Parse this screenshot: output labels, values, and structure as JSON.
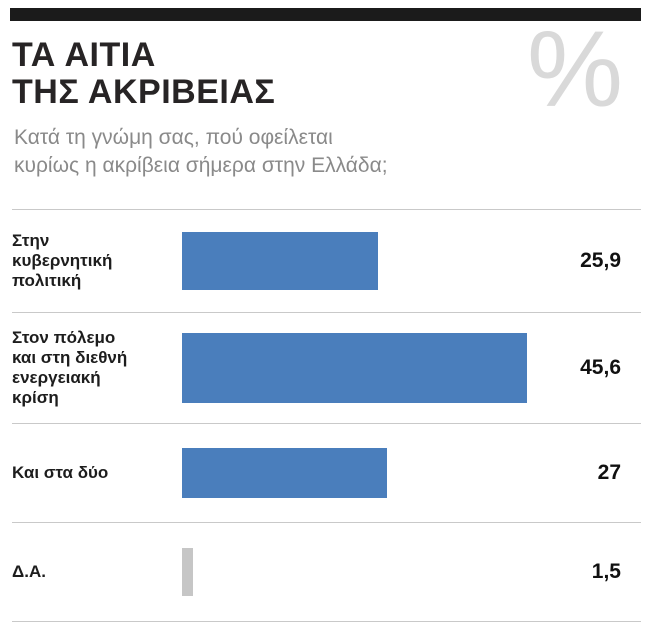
{
  "header": {
    "title": "ΤΑ ΑΙΤΙΑ\nΤΗΣ ΑΚΡΙΒΕΙΑΣ",
    "subtitle": "Κατά τη γνώμη σας, πού οφείλεται\nκυρίως η ακρίβεια σήμερα στην Ελλάδα;",
    "watermark": "%"
  },
  "colors": {
    "bar_blue": "#4a7ebc",
    "bar_gray": "#c6c6c6",
    "rule_black": "#1b1b1b",
    "separator_gray": "#c9c9c9"
  },
  "chart_data": {
    "type": "bar",
    "orientation": "horizontal",
    "title": "ΤΑ ΑΙΤΙΑ ΤΗΣ ΑΚΡΙΒΕΙΑΣ",
    "subtitle": "Κατά τη γνώμη σας, πού οφείλεται κυρίως η ακρίβεια σήμερα στην Ελλάδα;",
    "xlabel": "",
    "ylabel": "",
    "xmax": 47,
    "grid": false,
    "legend": false,
    "categories": [
      "Στην κυβερνητική πολιτική",
      "Στον πόλεμο και στη διεθνή ενεργειακή κρίση",
      "Και στα δύο",
      "Δ.Α."
    ],
    "values": [
      25.9,
      45.6,
      27,
      1.5
    ],
    "rows": [
      {
        "label": "Στην\nκυβερνητική\nπολιτική",
        "value": 25.9,
        "display_value": "25,9",
        "color": "#4a7ebc"
      },
      {
        "label": "Στον πόλεμο\nκαι στη διεθνή\nενεργειακή\nκρίση",
        "value": 45.6,
        "display_value": "45,6",
        "color": "#4a7ebc"
      },
      {
        "label": "Και στα δύο",
        "value": 27,
        "display_value": "27",
        "color": "#4a7ebc"
      },
      {
        "label": "Δ.Α.",
        "value": 1.5,
        "display_value": "1,5",
        "color": "#c6c6c6"
      }
    ]
  }
}
